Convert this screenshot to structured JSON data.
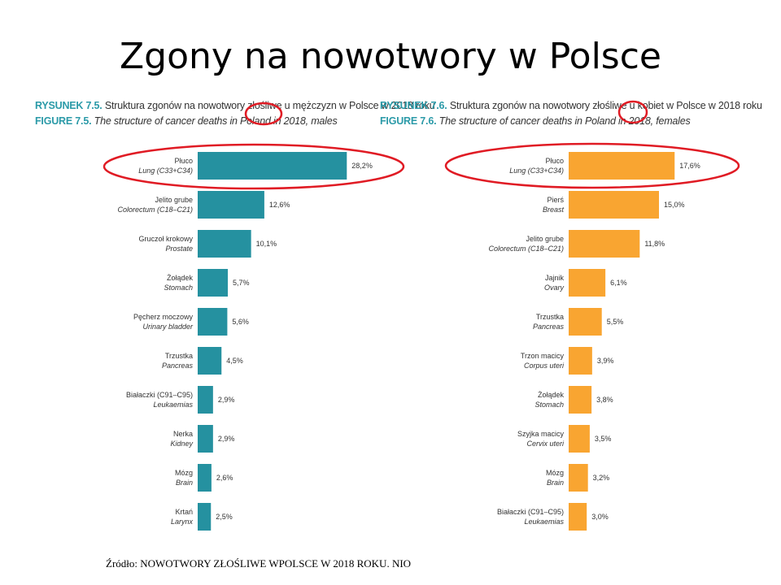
{
  "page": {
    "title": "Zgony na nowotwory w Polsce",
    "source_label": "Źródło:",
    "source_text": "NOWOTWORY ZŁOŚLIWE WPOLSCE W 2018 ROKU. NIO"
  },
  "colors": {
    "male_bar": "#2591a0",
    "female_bar": "#f9a531",
    "caption_accent": "#2b9aa8",
    "highlight": "#e01b24"
  },
  "chart_data": [
    {
      "type": "bar",
      "orientation": "horizontal",
      "caption_pl_number": "RYSUNEK 7.5.",
      "caption_pl_text": "Struktura zgonów na nowotwory złośliwe u mężczyzn w Polsce w 2018 roku",
      "caption_en_number": "FIGURE 7.5.",
      "caption_en_text": "The structure of cancer deaths in Poland in 2018, males",
      "categories_pl": [
        "Płuco",
        "Jelito grube",
        "Gruczoł krokowy",
        "Żołądek",
        "Pęcherz moczowy",
        "Trzustka",
        "Białaczki (C91–C95)",
        "Nerka",
        "Mózg",
        "Krtań"
      ],
      "categories_en": [
        "Lung (C33+C34)",
        "Colorectum (C18–C21)",
        "Prostate",
        "Stomach",
        "Urinary bladder",
        "Pancreas",
        "Leukaemias",
        "Kidney",
        "Brain",
        "Larynx"
      ],
      "values": [
        28.2,
        12.6,
        10.1,
        5.7,
        5.6,
        4.5,
        2.9,
        2.9,
        2.6,
        2.5
      ],
      "value_labels": [
        "28,2%",
        "12,6%",
        "10,1%",
        "5,7%",
        "5,6%",
        "4,5%",
        "2,9%",
        "2,9%",
        "2,6%",
        "2,5%"
      ],
      "highlighted": [
        "Płuco"
      ]
    },
    {
      "type": "bar",
      "orientation": "horizontal",
      "caption_pl_number": "RYSUNEK 7.6.",
      "caption_pl_text": "Struktura zgonów na nowotwory złośliwe u kobiet w Polsce w 2018 roku",
      "caption_en_number": "FIGURE 7.6.",
      "caption_en_text": "The structure of cancer deaths in Poland in 2018, females",
      "categories_pl": [
        "Płuco",
        "Pierś",
        "Jelito grube",
        "Jajnik",
        "Trzustka",
        "Trzon macicy",
        "Żołądek",
        "Szyjka macicy",
        "Mózg",
        "Białaczki (C91–C95)"
      ],
      "categories_en": [
        "Lung (C33+C34)",
        "Breast",
        "Colorectum (C18–C21)",
        "Ovary",
        "Pancreas",
        "Corpus uteri",
        "Stomach",
        "Cervix uteri",
        "Brain",
        "Leukaemias"
      ],
      "values": [
        17.6,
        15.0,
        11.8,
        6.1,
        5.5,
        3.9,
        3.8,
        3.5,
        3.2,
        3.0
      ],
      "value_labels": [
        "17,6%",
        "15,0%",
        "11,8%",
        "6,1%",
        "5,5%",
        "3,9%",
        "3,8%",
        "3,5%",
        "3,2%",
        "3,0%"
      ],
      "highlighted": [
        "Płuco"
      ]
    }
  ]
}
